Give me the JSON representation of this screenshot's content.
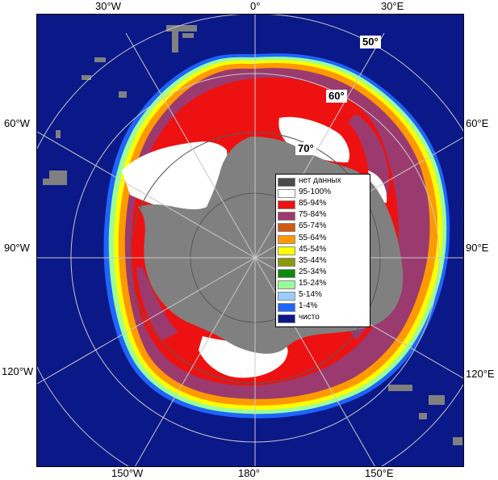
{
  "axes": {
    "top": [
      "30°W",
      "0°",
      "30°E"
    ],
    "left": [
      "60°W",
      "90°W",
      "120°W"
    ],
    "right": [
      "60°E",
      "90°E",
      "120°E"
    ],
    "bottom": [
      "150°W",
      "180°",
      "150°E"
    ]
  },
  "latitude_labels": [
    "50°",
    "60°",
    "70°"
  ],
  "legend": [
    {
      "label": "нет данных",
      "color": "#4a4a4a"
    },
    {
      "label": "95-100%",
      "color": "#ffffff"
    },
    {
      "label": "85-94%",
      "color": "#ee1111"
    },
    {
      "label": "75-84%",
      "color": "#9b3a6e"
    },
    {
      "label": "65-74%",
      "color": "#d25a14"
    },
    {
      "label": "55-64%",
      "color": "#ff9900"
    },
    {
      "label": "45-54%",
      "color": "#ffff00"
    },
    {
      "label": "35-44%",
      "color": "#8c9a0a"
    },
    {
      "label": "25-34%",
      "color": "#0a8a0a"
    },
    {
      "label": "15-24%",
      "color": "#99ff99"
    },
    {
      "label": "5-14%",
      "color": "#99ccff"
    },
    {
      "label": "1-4%",
      "color": "#1e64ff"
    },
    {
      "label": "чисто",
      "color": "#0a1888"
    }
  ],
  "colors": {
    "ocean": "#0a1888",
    "land": "#808080",
    "no_data": "#4a4a4a",
    "grid": "#c8c8c8"
  }
}
